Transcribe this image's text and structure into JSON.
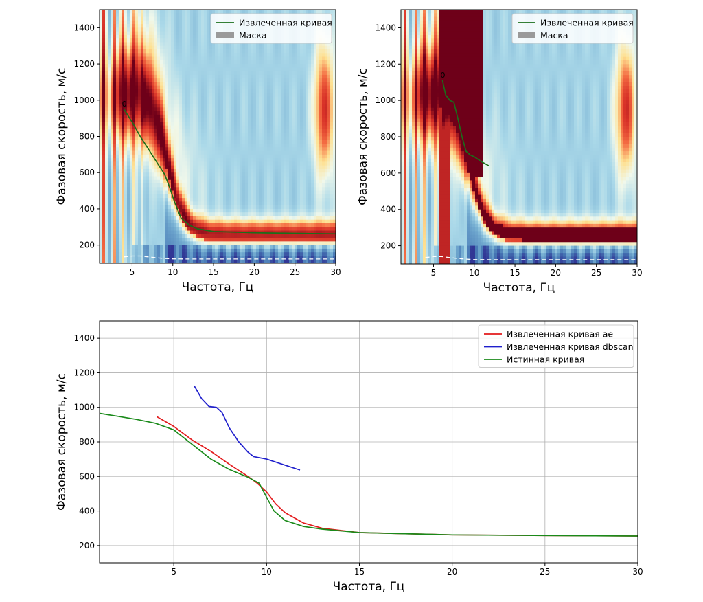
{
  "chart_data": [
    {
      "type": "heatmap",
      "xlabel": "Частота, Гц",
      "ylabel": "Фазовая скорость, м/с",
      "xlim": [
        1,
        30
      ],
      "ylim": [
        100,
        1500
      ],
      "xticks": [
        5,
        10,
        15,
        20,
        25,
        30
      ],
      "yticks": [
        200,
        400,
        600,
        800,
        1000,
        1200,
        1400
      ],
      "colormap": "RdYlBu_r",
      "legend_position": "top-right",
      "legend": [
        "Извлеченная кривая",
        "Маска"
      ],
      "annotation": "0",
      "series": [
        {
          "name": "Извлеченная кривая",
          "color": "#1a6e1a",
          "x": [
            4.0,
            5.0,
            6.0,
            7.0,
            8.0,
            9.0,
            9.6,
            10.2,
            11.0,
            12.0,
            13.0,
            15.0,
            20.0,
            25.0,
            30.0
          ],
          "y": [
            950,
            880,
            800,
            730,
            660,
            590,
            520,
            440,
            350,
            310,
            290,
            275,
            268,
            265,
            262
          ]
        },
        {
          "name": "cutoff",
          "color": "#ffffff",
          "style": "dashed",
          "x": [
            4.0,
            5.0,
            6.0,
            7.0,
            8.0,
            9.0,
            10.0,
            12.0,
            30.0
          ],
          "y": [
            135,
            140,
            140,
            135,
            130,
            126,
            124,
            123,
            123
          ]
        }
      ]
    },
    {
      "type": "heatmap",
      "xlabel": "Частота, Гц",
      "ylabel": "Фазовая скорость, м/с",
      "xlim": [
        1,
        30
      ],
      "ylim": [
        100,
        1500
      ],
      "xticks": [
        5,
        10,
        15,
        20,
        25,
        30
      ],
      "yticks": [
        200,
        400,
        600,
        800,
        1000,
        1200,
        1400
      ],
      "colormap": "RdYlBu_r",
      "legend_position": "top-right",
      "legend": [
        "Извлеченная кривая",
        "Маска"
      ],
      "annotation": "0",
      "series": [
        {
          "name": "Извлеченная кривая",
          "color": "#1a6e1a",
          "x": [
            6.1,
            6.5,
            7.0,
            7.5,
            8.0,
            8.5,
            9.0,
            9.5,
            10.0,
            11.0,
            11.8
          ],
          "y": [
            1110,
            1030,
            1000,
            990,
            900,
            800,
            720,
            700,
            690,
            660,
            640
          ]
        },
        {
          "name": "cutoff",
          "color": "#ffffff",
          "style": "dashed",
          "x": [
            4.0,
            5.0,
            6.0,
            7.0,
            8.0,
            9.0,
            10.0,
            12.0,
            30.0
          ],
          "y": [
            135,
            140,
            140,
            135,
            130,
            126,
            124,
            123,
            123
          ]
        }
      ]
    },
    {
      "type": "line",
      "xlabel": "Частота, Гц",
      "ylabel": "Фазовая скорость, м/с",
      "xlim": [
        1,
        30
      ],
      "ylim": [
        100,
        1500
      ],
      "xticks": [
        5,
        10,
        15,
        20,
        25,
        30
      ],
      "yticks": [
        200,
        400,
        600,
        800,
        1000,
        1200,
        1400
      ],
      "grid": true,
      "legend_position": "top-right",
      "series": [
        {
          "name": "Извлеченная кривая ae",
          "color": "#e31a1c",
          "x": [
            4.1,
            5.0,
            6.0,
            7.0,
            8.0,
            9.0,
            9.5,
            10.0,
            10.5,
            11.0,
            12.0,
            13.0,
            15.0,
            20.0,
            25.0,
            30.0
          ],
          "y": [
            945,
            890,
            810,
            745,
            670,
            600,
            560,
            510,
            440,
            390,
            330,
            300,
            275,
            262,
            258,
            255
          ]
        },
        {
          "name": "Извлеченная кривая dbscan",
          "color": "#1f1fcc",
          "x": [
            6.1,
            6.5,
            6.9,
            7.3,
            7.6,
            8.0,
            8.5,
            9.0,
            9.3,
            10.0,
            11.0,
            11.8
          ],
          "y": [
            1125,
            1050,
            1005,
            1000,
            970,
            880,
            800,
            740,
            715,
            700,
            665,
            637
          ]
        },
        {
          "name": "Истинная кривая",
          "color": "#1a8a1a",
          "x": [
            1.0,
            2.0,
            3.0,
            4.0,
            5.0,
            6.0,
            7.0,
            8.0,
            9.0,
            9.6,
            10.0,
            10.4,
            11.0,
            12.0,
            13.0,
            15.0,
            20.0,
            25.0,
            30.0
          ],
          "y": [
            965,
            948,
            930,
            908,
            870,
            785,
            700,
            640,
            595,
            560,
            480,
            400,
            345,
            310,
            295,
            275,
            262,
            258,
            255
          ]
        }
      ]
    }
  ]
}
